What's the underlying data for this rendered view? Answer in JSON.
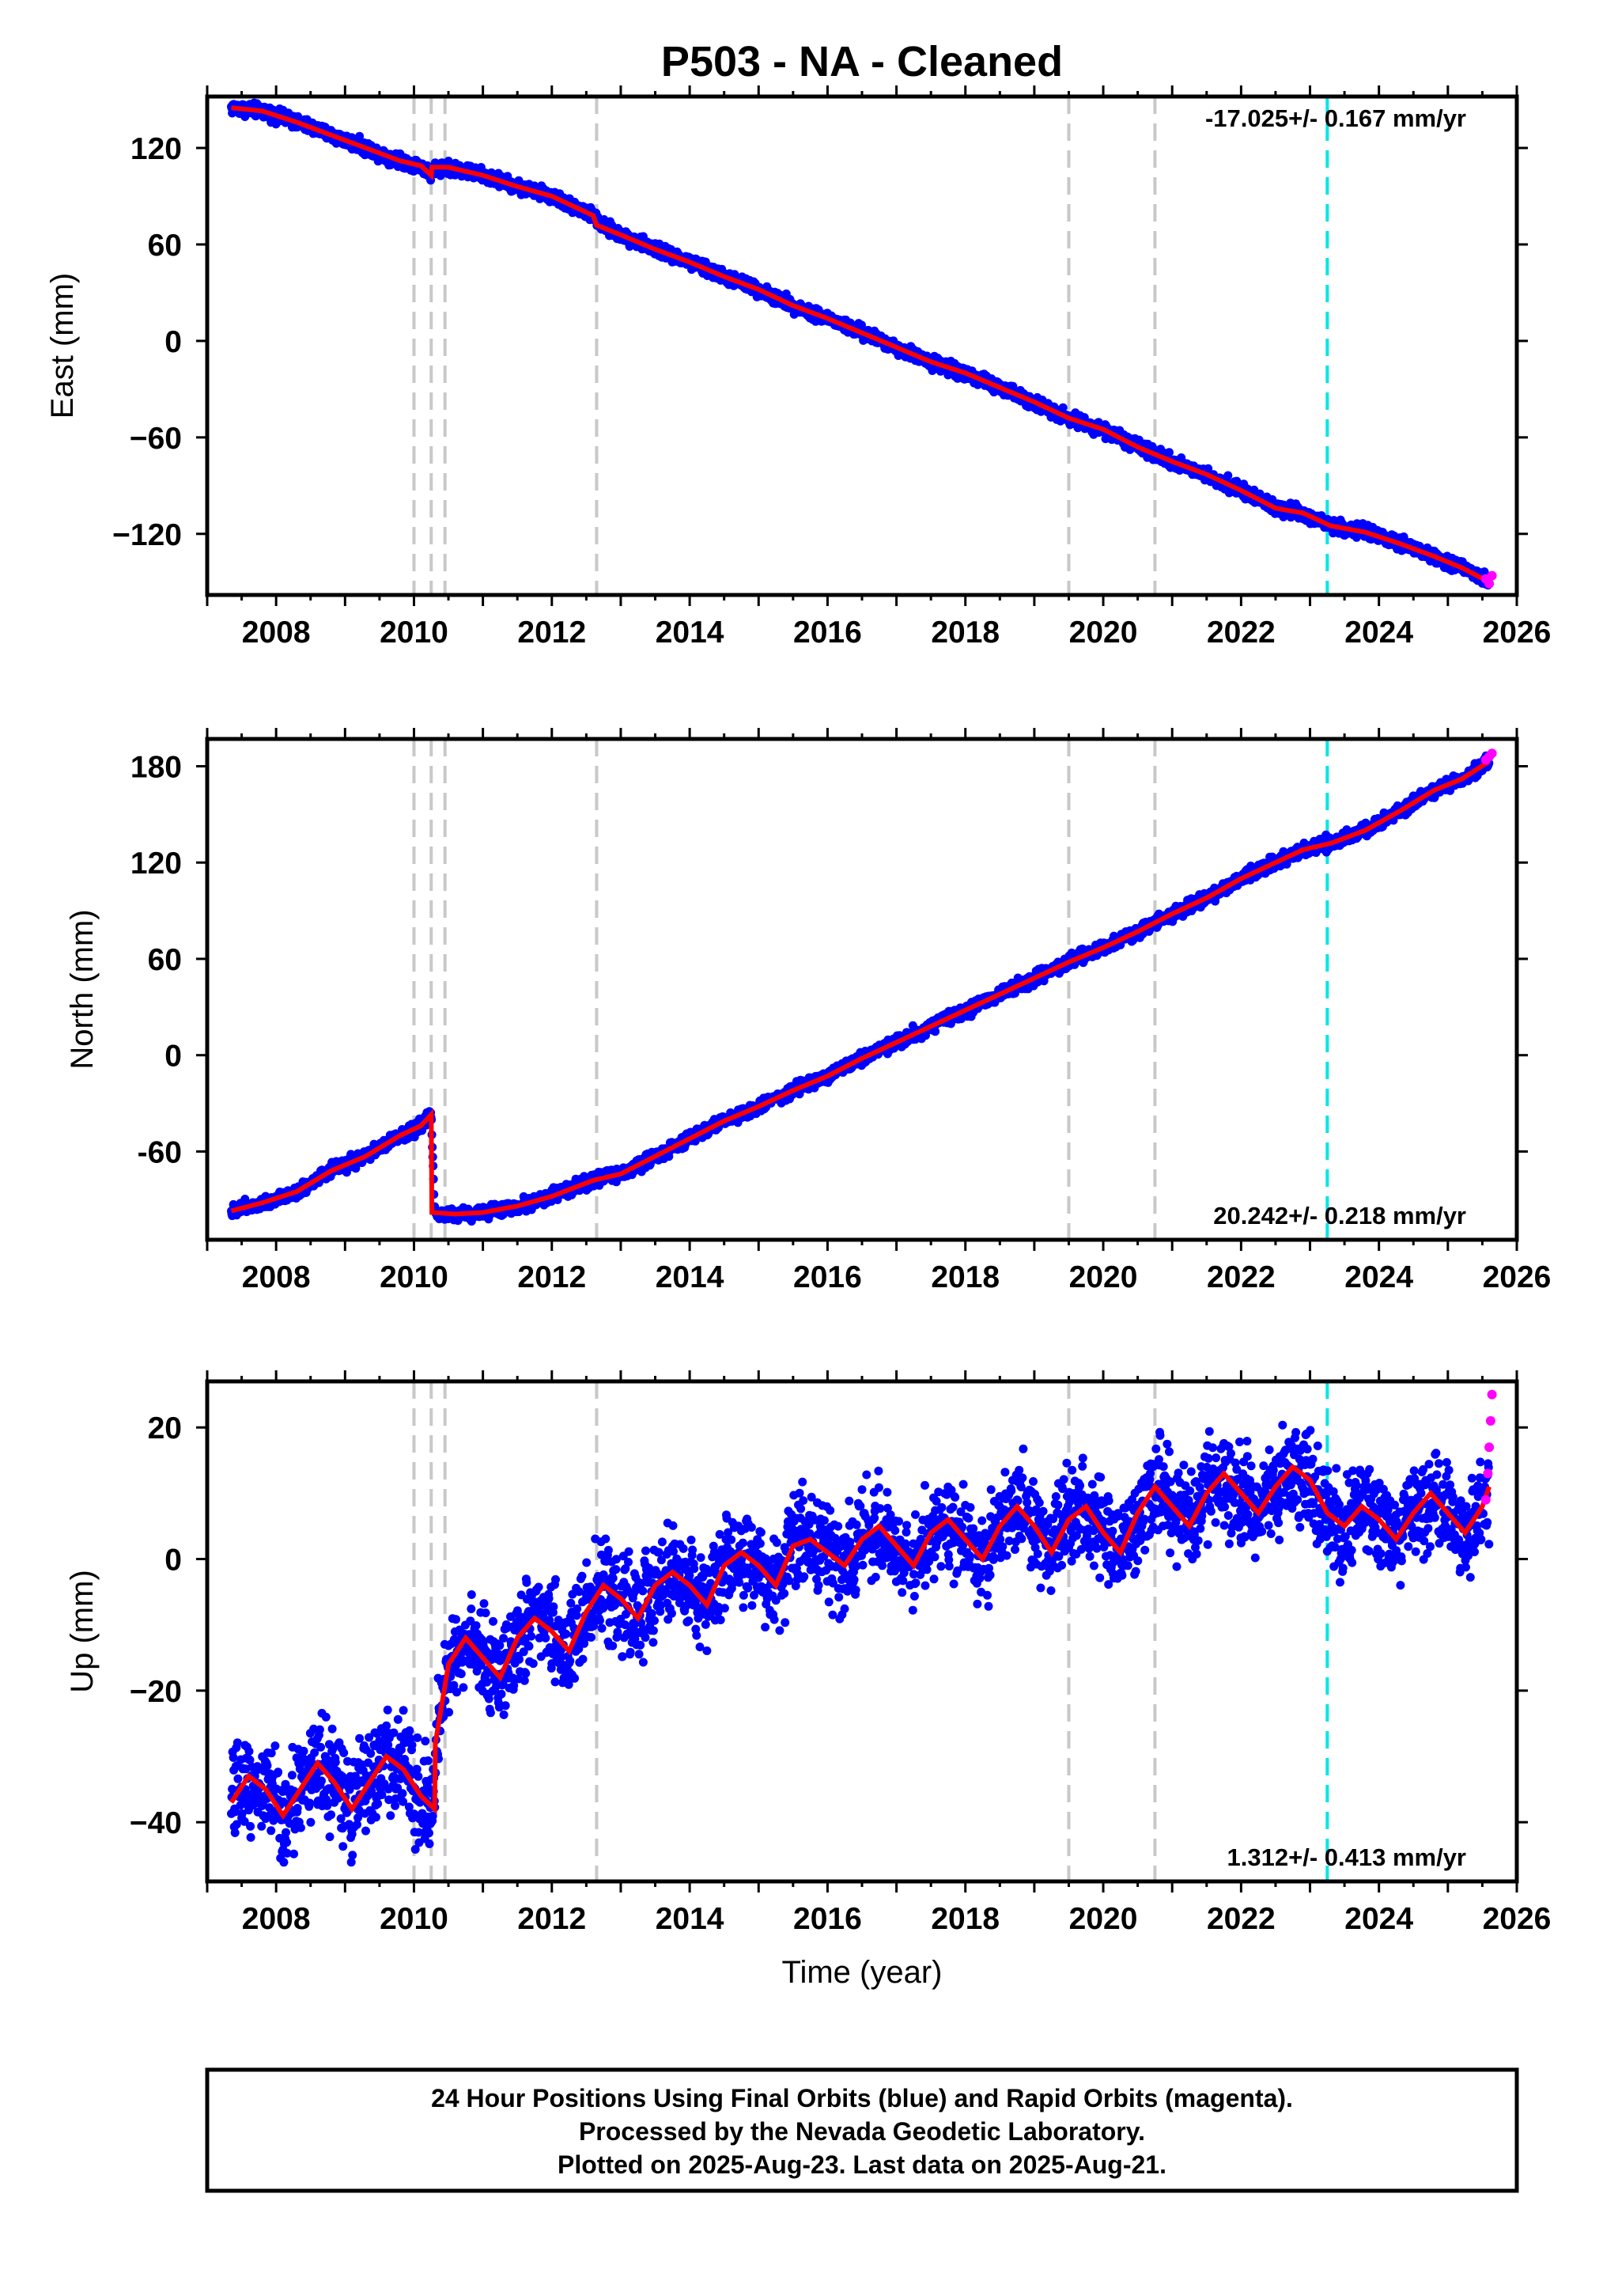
{
  "title": "P503  - NA - Cleaned",
  "colors": {
    "final": "#0000ff",
    "rapid": "#ff00ff",
    "model": "#ff0000",
    "event": "#c8c8c8",
    "event_recent": "#00e6e6"
  },
  "footer": {
    "line1": "24 Hour Positions Using Final Orbits (blue) and Rapid Orbits (magenta).",
    "line2": "Processed by the Nevada Geodetic Laboratory.",
    "line3": "Plotted on 2025-Aug-23. Last data on 2025-Aug-21."
  },
  "chart_data": [
    {
      "type": "scatter",
      "panel": "east",
      "ylabel": "East (mm)",
      "xlabel": "",
      "rate_label": "-17.025+/- 0.167 mm/yr",
      "rate_position": "top-right",
      "xlim": [
        2007.0,
        2026.0
      ],
      "ylim": [
        -158,
        152
      ],
      "xticks": [
        2008,
        2010,
        2012,
        2014,
        2016,
        2018,
        2020,
        2022,
        2024,
        2026
      ],
      "yticks": [
        120,
        60,
        0,
        -60,
        -120
      ],
      "ytick_labels": [
        "120",
        "60",
        "0",
        "−60",
        "−120"
      ],
      "event_lines": [
        2010.0,
        2010.25,
        2010.45,
        2012.65,
        2019.5,
        2020.75
      ],
      "event_lines_recent": [
        2023.25
      ],
      "series": [
        {
          "role": "model",
          "x": [
            2007.35,
            2007.8,
            2008.3,
            2008.8,
            2009.3,
            2009.8,
            2010.1,
            2010.25,
            2010.26,
            2010.5,
            2011.0,
            2011.5,
            2012.0,
            2012.6,
            2012.65,
            2013.0,
            2013.5,
            2014.0,
            2014.5,
            2015.0,
            2015.5,
            2016.0,
            2016.5,
            2017.0,
            2017.5,
            2018.0,
            2018.5,
            2019.0,
            2019.5,
            2020.0,
            2020.5,
            2021.0,
            2021.5,
            2022.0,
            2022.5,
            2022.9,
            2023.3,
            2023.8,
            2024.3,
            2024.8,
            2025.2,
            2025.6
          ],
          "y": [
            145,
            143,
            136,
            128,
            120,
            112,
            109,
            103,
            108,
            108,
            103,
            96,
            90,
            78,
            72,
            66,
            57,
            49,
            40,
            32,
            22,
            14,
            5,
            -4,
            -13,
            -20,
            -29,
            -38,
            -48,
            -55,
            -66,
            -75,
            -83,
            -93,
            -104,
            -107,
            -115,
            -119,
            -126,
            -134,
            -141,
            -150
          ]
        },
        {
          "role": "final",
          "x": [
            2007.35,
            2007.8,
            2008.3,
            2008.8,
            2009.3,
            2009.8,
            2010.1,
            2010.25,
            2010.3,
            2010.5,
            2011.0,
            2011.5,
            2012.0,
            2012.6,
            2012.7,
            2013.0,
            2013.5,
            2014.0,
            2014.5,
            2015.0,
            2015.5,
            2016.0,
            2016.5,
            2017.0,
            2017.5,
            2018.0,
            2018.5,
            2019.0,
            2019.5,
            2020.0,
            2020.5,
            2021.0,
            2021.5,
            2022.0,
            2022.5,
            2022.9,
            2023.3,
            2023.8,
            2024.3,
            2024.8,
            2025.2,
            2025.6
          ],
          "y": [
            145,
            143,
            136,
            128,
            120,
            112,
            109,
            103,
            108,
            108,
            103,
            96,
            90,
            78,
            72,
            66,
            57,
            49,
            40,
            32,
            22,
            14,
            5,
            -4,
            -13,
            -20,
            -29,
            -38,
            -48,
            -55,
            -66,
            -75,
            -83,
            -93,
            -104,
            -107,
            -115,
            -119,
            -126,
            -134,
            -141,
            -150
          ],
          "scatter_mm": 2.5
        },
        {
          "role": "rapid",
          "x": [
            2025.55,
            2025.6,
            2025.64
          ],
          "y": [
            -148,
            -151,
            -146
          ],
          "scatter_mm": 2
        }
      ]
    },
    {
      "type": "scatter",
      "panel": "north",
      "ylabel": "North (mm)",
      "xlabel": "",
      "rate_label": "20.242+/- 0.218 mm/yr",
      "rate_position": "bottom-right",
      "xlim": [
        2007.0,
        2026.0
      ],
      "ylim": [
        -115,
        197
      ],
      "xticks": [
        2008,
        2010,
        2012,
        2014,
        2016,
        2018,
        2020,
        2022,
        2024,
        2026
      ],
      "yticks": [
        180,
        120,
        60,
        0,
        -60
      ],
      "ytick_labels": [
        "180",
        "120",
        "60",
        "0",
        "-60"
      ],
      "event_lines": [
        2010.0,
        2010.25,
        2010.45,
        2012.65,
        2019.5,
        2020.75
      ],
      "event_lines_recent": [
        2023.25
      ],
      "series": [
        {
          "role": "model",
          "x": [
            2007.35,
            2007.8,
            2008.3,
            2008.8,
            2009.3,
            2009.8,
            2010.1,
            2010.25,
            2010.26,
            2010.6,
            2011.0,
            2011.5,
            2012.0,
            2012.6,
            2013.0,
            2013.5,
            2014.0,
            2014.5,
            2015.0,
            2015.5,
            2016.0,
            2016.5,
            2017.0,
            2017.5,
            2018.0,
            2018.5,
            2019.0,
            2019.5,
            2020.0,
            2020.5,
            2021.0,
            2021.5,
            2022.0,
            2022.5,
            2022.9,
            2023.3,
            2023.8,
            2024.3,
            2024.8,
            2025.2,
            2025.6
          ],
          "y": [
            -97,
            -92,
            -85,
            -72,
            -63,
            -50,
            -44,
            -37,
            -98,
            -99,
            -98,
            -94,
            -88,
            -78,
            -74,
            -63,
            -52,
            -41,
            -32,
            -22,
            -13,
            -2,
            8,
            18,
            28,
            38,
            48,
            58,
            67,
            77,
            88,
            98,
            110,
            120,
            128,
            132,
            140,
            152,
            165,
            172,
            183
          ]
        },
        {
          "role": "final",
          "x": [
            2007.35,
            2007.8,
            2008.3,
            2008.8,
            2009.3,
            2009.8,
            2010.1,
            2010.25,
            2010.3,
            2010.6,
            2011.0,
            2011.5,
            2012.0,
            2012.6,
            2013.0,
            2013.5,
            2014.0,
            2014.5,
            2015.0,
            2015.5,
            2016.0,
            2016.5,
            2017.0,
            2017.5,
            2018.0,
            2018.5,
            2019.0,
            2019.5,
            2020.0,
            2020.5,
            2021.0,
            2021.5,
            2022.0,
            2022.5,
            2022.9,
            2023.3,
            2023.8,
            2024.3,
            2024.8,
            2025.2,
            2025.6
          ],
          "y": [
            -97,
            -92,
            -85,
            -72,
            -63,
            -50,
            -44,
            -37,
            -98,
            -99,
            -98,
            -94,
            -88,
            -78,
            -74,
            -63,
            -52,
            -41,
            -32,
            -22,
            -13,
            -2,
            8,
            18,
            28,
            38,
            48,
            58,
            67,
            77,
            88,
            98,
            110,
            120,
            128,
            132,
            140,
            152,
            165,
            172,
            183
          ],
          "scatter_mm": 2.5
        },
        {
          "role": "rapid",
          "x": [
            2025.55,
            2025.6,
            2025.64
          ],
          "y": [
            184,
            186,
            188
          ],
          "scatter_mm": 2
        }
      ]
    },
    {
      "type": "scatter",
      "panel": "up",
      "ylabel": "Up (mm)",
      "xlabel": "Time (year)",
      "rate_label": "1.312+/- 0.413 mm/yr",
      "rate_position": "bottom-right",
      "xlim": [
        2007.0,
        2026.0
      ],
      "ylim": [
        -49,
        27
      ],
      "xticks": [
        2008,
        2010,
        2012,
        2014,
        2016,
        2018,
        2020,
        2022,
        2024,
        2026
      ],
      "yticks": [
        20,
        0,
        -20,
        -40
      ],
      "ytick_labels": [
        "20",
        "0",
        "−20",
        "−40"
      ],
      "event_lines": [
        2010.0,
        2010.25,
        2010.45,
        2012.65,
        2019.5,
        2020.75
      ],
      "event_lines_recent": [
        2023.25
      ],
      "series": [
        {
          "role": "model",
          "x": [
            2007.35,
            2007.6,
            2007.85,
            2008.1,
            2008.35,
            2008.6,
            2008.85,
            2009.1,
            2009.35,
            2009.6,
            2009.85,
            2010.1,
            2010.3,
            2010.31,
            2010.5,
            2010.75,
            2011.0,
            2011.25,
            2011.5,
            2011.75,
            2012.0,
            2012.25,
            2012.5,
            2012.75,
            2013.0,
            2013.25,
            2013.5,
            2013.75,
            2014.0,
            2014.25,
            2014.5,
            2014.75,
            2015.0,
            2015.25,
            2015.5,
            2015.75,
            2016.0,
            2016.25,
            2016.5,
            2016.75,
            2017.0,
            2017.25,
            2017.5,
            2017.75,
            2018.0,
            2018.25,
            2018.5,
            2018.75,
            2019.0,
            2019.25,
            2019.5,
            2019.75,
            2020.0,
            2020.25,
            2020.5,
            2020.75,
            2021.0,
            2021.25,
            2021.5,
            2021.75,
            2022.0,
            2022.25,
            2022.5,
            2022.75,
            2023.0,
            2023.25,
            2023.5,
            2023.75,
            2024.0,
            2024.25,
            2024.5,
            2024.75,
            2025.0,
            2025.25,
            2025.5,
            2025.6
          ],
          "y": [
            -37,
            -33,
            -35,
            -39,
            -35,
            -31,
            -34,
            -38,
            -34,
            -30,
            -32,
            -36,
            -38,
            -28,
            -16,
            -12,
            -15,
            -18,
            -12,
            -9,
            -11,
            -14,
            -8,
            -4,
            -6,
            -9,
            -4,
            -2,
            -4,
            -7,
            -1,
            1,
            -1,
            -4,
            2,
            3,
            1,
            -1,
            3,
            5,
            2,
            -1,
            4,
            6,
            3,
            0,
            5,
            8,
            5,
            1,
            6,
            8,
            4,
            1,
            7,
            11,
            8,
            5,
            10,
            13,
            10,
            7,
            11,
            14,
            12,
            7,
            5,
            8,
            6,
            3,
            7,
            10,
            7,
            4,
            8,
            11
          ]
        },
        {
          "role": "final",
          "x": [
            2007.35,
            2007.6,
            2007.85,
            2008.1,
            2008.35,
            2008.6,
            2008.85,
            2009.1,
            2009.35,
            2009.6,
            2009.85,
            2010.1,
            2010.3,
            2010.31,
            2010.5,
            2010.75,
            2011.0,
            2011.25,
            2011.5,
            2011.75,
            2012.0,
            2012.25,
            2012.5,
            2012.75,
            2013.0,
            2013.25,
            2013.5,
            2013.75,
            2014.0,
            2014.25,
            2014.5,
            2014.75,
            2015.0,
            2015.25,
            2015.5,
            2015.75,
            2016.0,
            2016.25,
            2016.5,
            2016.75,
            2017.0,
            2017.25,
            2017.5,
            2017.75,
            2018.0,
            2018.25,
            2018.5,
            2018.75,
            2019.0,
            2019.25,
            2019.5,
            2019.75,
            2020.0,
            2020.25,
            2020.5,
            2020.75,
            2021.0,
            2021.25,
            2021.5,
            2021.75,
            2022.0,
            2022.25,
            2022.5,
            2022.75,
            2023.0,
            2023.25,
            2023.5,
            2023.75,
            2024.0,
            2024.25,
            2024.5,
            2024.75,
            2025.0,
            2025.25,
            2025.5,
            2025.6
          ],
          "y": [
            -37,
            -33,
            -35,
            -39,
            -35,
            -31,
            -34,
            -38,
            -34,
            -30,
            -32,
            -36,
            -38,
            -28,
            -16,
            -12,
            -15,
            -18,
            -12,
            -9,
            -11,
            -14,
            -8,
            -4,
            -6,
            -9,
            -4,
            -2,
            -4,
            -7,
            -1,
            1,
            -1,
            -4,
            2,
            3,
            1,
            -1,
            3,
            5,
            2,
            -1,
            4,
            6,
            3,
            0,
            5,
            8,
            5,
            1,
            6,
            8,
            4,
            1,
            7,
            11,
            8,
            5,
            10,
            13,
            10,
            7,
            11,
            14,
            12,
            7,
            5,
            8,
            6,
            3,
            7,
            10,
            7,
            4,
            8,
            11
          ],
          "scatter_mm": 4.5
        },
        {
          "role": "rapid",
          "x": [
            2025.55,
            2025.58,
            2025.6,
            2025.62,
            2025.64
          ],
          "y": [
            9,
            13,
            17,
            21,
            25
          ],
          "scatter_mm": 1.5
        }
      ]
    }
  ]
}
